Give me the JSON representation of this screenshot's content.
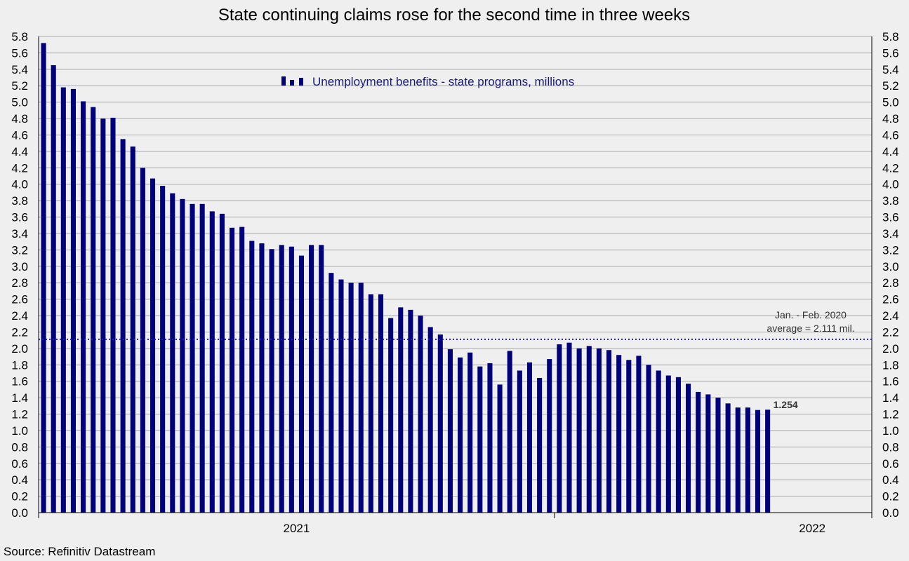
{
  "chart_data": {
    "type": "bar",
    "title": "State continuing claims rose for the second time in three weeks",
    "series": [
      {
        "name": "Unemployment benefits - state programs, millions",
        "color": "#00007a",
        "values": [
          5.72,
          5.45,
          5.18,
          5.16,
          5.01,
          4.94,
          4.8,
          4.81,
          4.55,
          4.46,
          4.2,
          4.07,
          3.98,
          3.89,
          3.82,
          3.76,
          3.76,
          3.67,
          3.64,
          3.47,
          3.48,
          3.31,
          3.28,
          3.21,
          3.26,
          3.24,
          3.13,
          3.26,
          3.26,
          2.92,
          2.84,
          2.8,
          2.8,
          2.66,
          2.66,
          2.37,
          2.5,
          2.47,
          2.4,
          2.26,
          2.17,
          1.99,
          1.89,
          1.95,
          1.78,
          1.82,
          1.56,
          1.97,
          1.73,
          1.83,
          1.64,
          1.87,
          2.05,
          2.07,
          2.0,
          2.03,
          2.0,
          1.98,
          1.92,
          1.86,
          1.91,
          1.8,
          1.73,
          1.67,
          1.65,
          1.57,
          1.47,
          1.44,
          1.4,
          1.33,
          1.28,
          1.28,
          1.25,
          1.254
        ]
      }
    ],
    "ylim": [
      0.0,
      5.8
    ],
    "y_ticks": [
      "0.0",
      "0.2",
      "0.4",
      "0.6",
      "0.8",
      "1.0",
      "1.2",
      "1.4",
      "1.6",
      "1.8",
      "2.0",
      "2.2",
      "2.4",
      "2.6",
      "2.8",
      "3.0",
      "3.2",
      "3.4",
      "3.6",
      "3.8",
      "4.0",
      "4.2",
      "4.4",
      "4.6",
      "4.8",
      "5.0",
      "5.2",
      "5.4",
      "5.6",
      "5.8"
    ],
    "x_axis_weeks": 84,
    "x_ticks": [
      {
        "label": "2021",
        "week_index": 26
      },
      {
        "label": "2022",
        "week_index": 78
      }
    ],
    "year_boundary_weeks": [
      0,
      52,
      84
    ],
    "reference_line": {
      "value": 2.111,
      "label_line1": "Jan. - Feb. 2020",
      "label_line2": "average = 2.111 mil."
    },
    "last_value_label": "1.254",
    "grid": true,
    "legend_position": "top-center",
    "xlabel": "",
    "ylabel": ""
  },
  "source": "Source: Refinitiv Datastream"
}
